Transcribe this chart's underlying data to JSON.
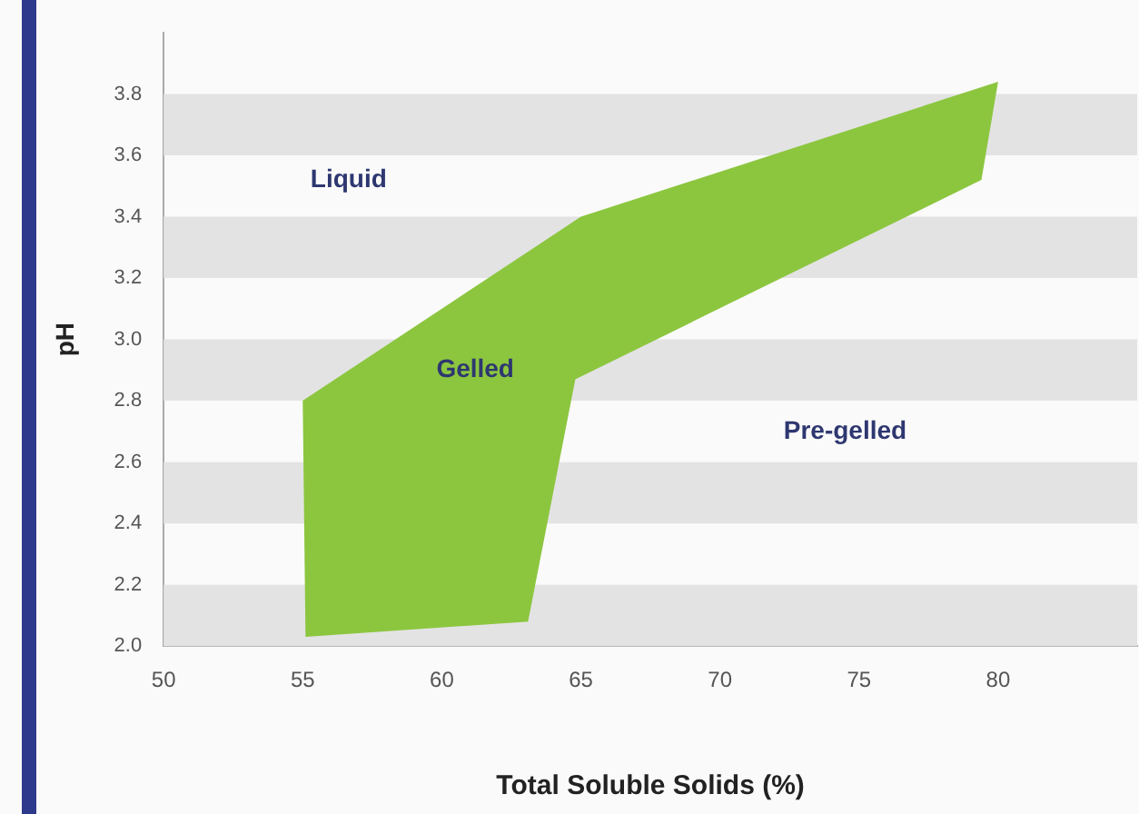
{
  "chart_data": {
    "type": "area",
    "xlabel": "Total Soluble Solids (%)",
    "ylabel": "pH",
    "series": [
      {
        "color": "#8cc63f",
        "x": [
          55,
          55.1,
          63.1,
          64.8,
          79.4,
          80,
          65,
          55
        ],
        "values": [
          2.8,
          2.03,
          2.08,
          2.87,
          3.52,
          3.84,
          3.4,
          2.8
        ]
      }
    ],
    "xlim": [
      50,
      85
    ],
    "xticks": [
      50,
      55,
      60,
      65,
      70,
      75,
      80
    ],
    "ylim": [
      2.0,
      4.0
    ],
    "yticks": [
      {
        "value": 2.0,
        "label": "2.0"
      },
      {
        "value": 2.2,
        "label": "2.2"
      },
      {
        "value": 2.4,
        "label": "2.4"
      },
      {
        "value": 2.6,
        "label": "2.6"
      },
      {
        "value": 2.8,
        "label": "2.8"
      },
      {
        "value": 3.0,
        "label": "3.0"
      },
      {
        "value": 3.2,
        "label": "3.2"
      },
      {
        "value": 3.4,
        "label": "3.4"
      },
      {
        "value": 3.6,
        "label": "3.6"
      },
      {
        "value": 3.8,
        "label": "3.8"
      }
    ],
    "legend": false,
    "annotations": [
      "Liquid",
      "Gelled",
      "Pre-gelled"
    ]
  }
}
